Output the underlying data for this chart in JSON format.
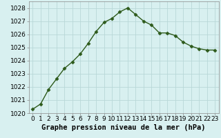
{
  "x": [
    0,
    1,
    2,
    3,
    4,
    5,
    6,
    7,
    8,
    9,
    10,
    11,
    12,
    13,
    14,
    15,
    16,
    17,
    18,
    19,
    20,
    21,
    22,
    23
  ],
  "y": [
    1020.3,
    1020.7,
    1021.8,
    1022.6,
    1023.4,
    1023.9,
    1024.5,
    1025.3,
    1026.2,
    1026.9,
    1027.2,
    1027.7,
    1028.0,
    1027.5,
    1027.0,
    1026.7,
    1026.1,
    1026.1,
    1025.9,
    1025.4,
    1025.1,
    1024.9,
    1024.8,
    1024.8
  ],
  "line_color": "#2d5a1b",
  "marker": "D",
  "marker_size": 2.5,
  "bg_color": "#d8f0f0",
  "grid_color": "#b8d8d8",
  "xlabel": "Graphe pression niveau de la mer (hPa)",
  "xlabel_fontsize": 7.5,
  "ylim": [
    1020,
    1028.5
  ],
  "yticks": [
    1020,
    1021,
    1022,
    1023,
    1024,
    1025,
    1026,
    1027,
    1028
  ],
  "xticks": [
    0,
    1,
    2,
    3,
    4,
    5,
    6,
    7,
    8,
    9,
    10,
    11,
    12,
    13,
    14,
    15,
    16,
    17,
    18,
    19,
    20,
    21,
    22,
    23
  ],
  "line_width": 1.0,
  "tick_fontsize": 6.5,
  "spine_color": "#888888"
}
